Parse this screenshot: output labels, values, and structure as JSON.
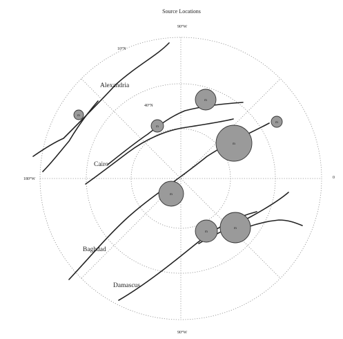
{
  "title": "Source Locations",
  "compass": {
    "north": "90°W",
    "south": "90°W",
    "west": "180°W",
    "east": "0"
  },
  "latitude_labels": [
    "10°N",
    "40°N"
  ],
  "cities": [
    "Alexandria",
    "Cairo",
    "Baghdad",
    "Damascus"
  ],
  "sources": [
    {
      "label": "m",
      "size": "large"
    },
    {
      "label": "m",
      "size": "medium"
    },
    {
      "label": "m",
      "size": "medium"
    },
    {
      "label": "m",
      "size": "medium"
    },
    {
      "label": "m",
      "size": "medium"
    },
    {
      "label": "m",
      "size": "small"
    },
    {
      "label": "m",
      "size": "small"
    },
    {
      "label": "m",
      "size": "small"
    }
  ],
  "colors": {
    "source_fill": "#9a9a9a",
    "line": "#222222",
    "grid": "#8a8a8a"
  }
}
